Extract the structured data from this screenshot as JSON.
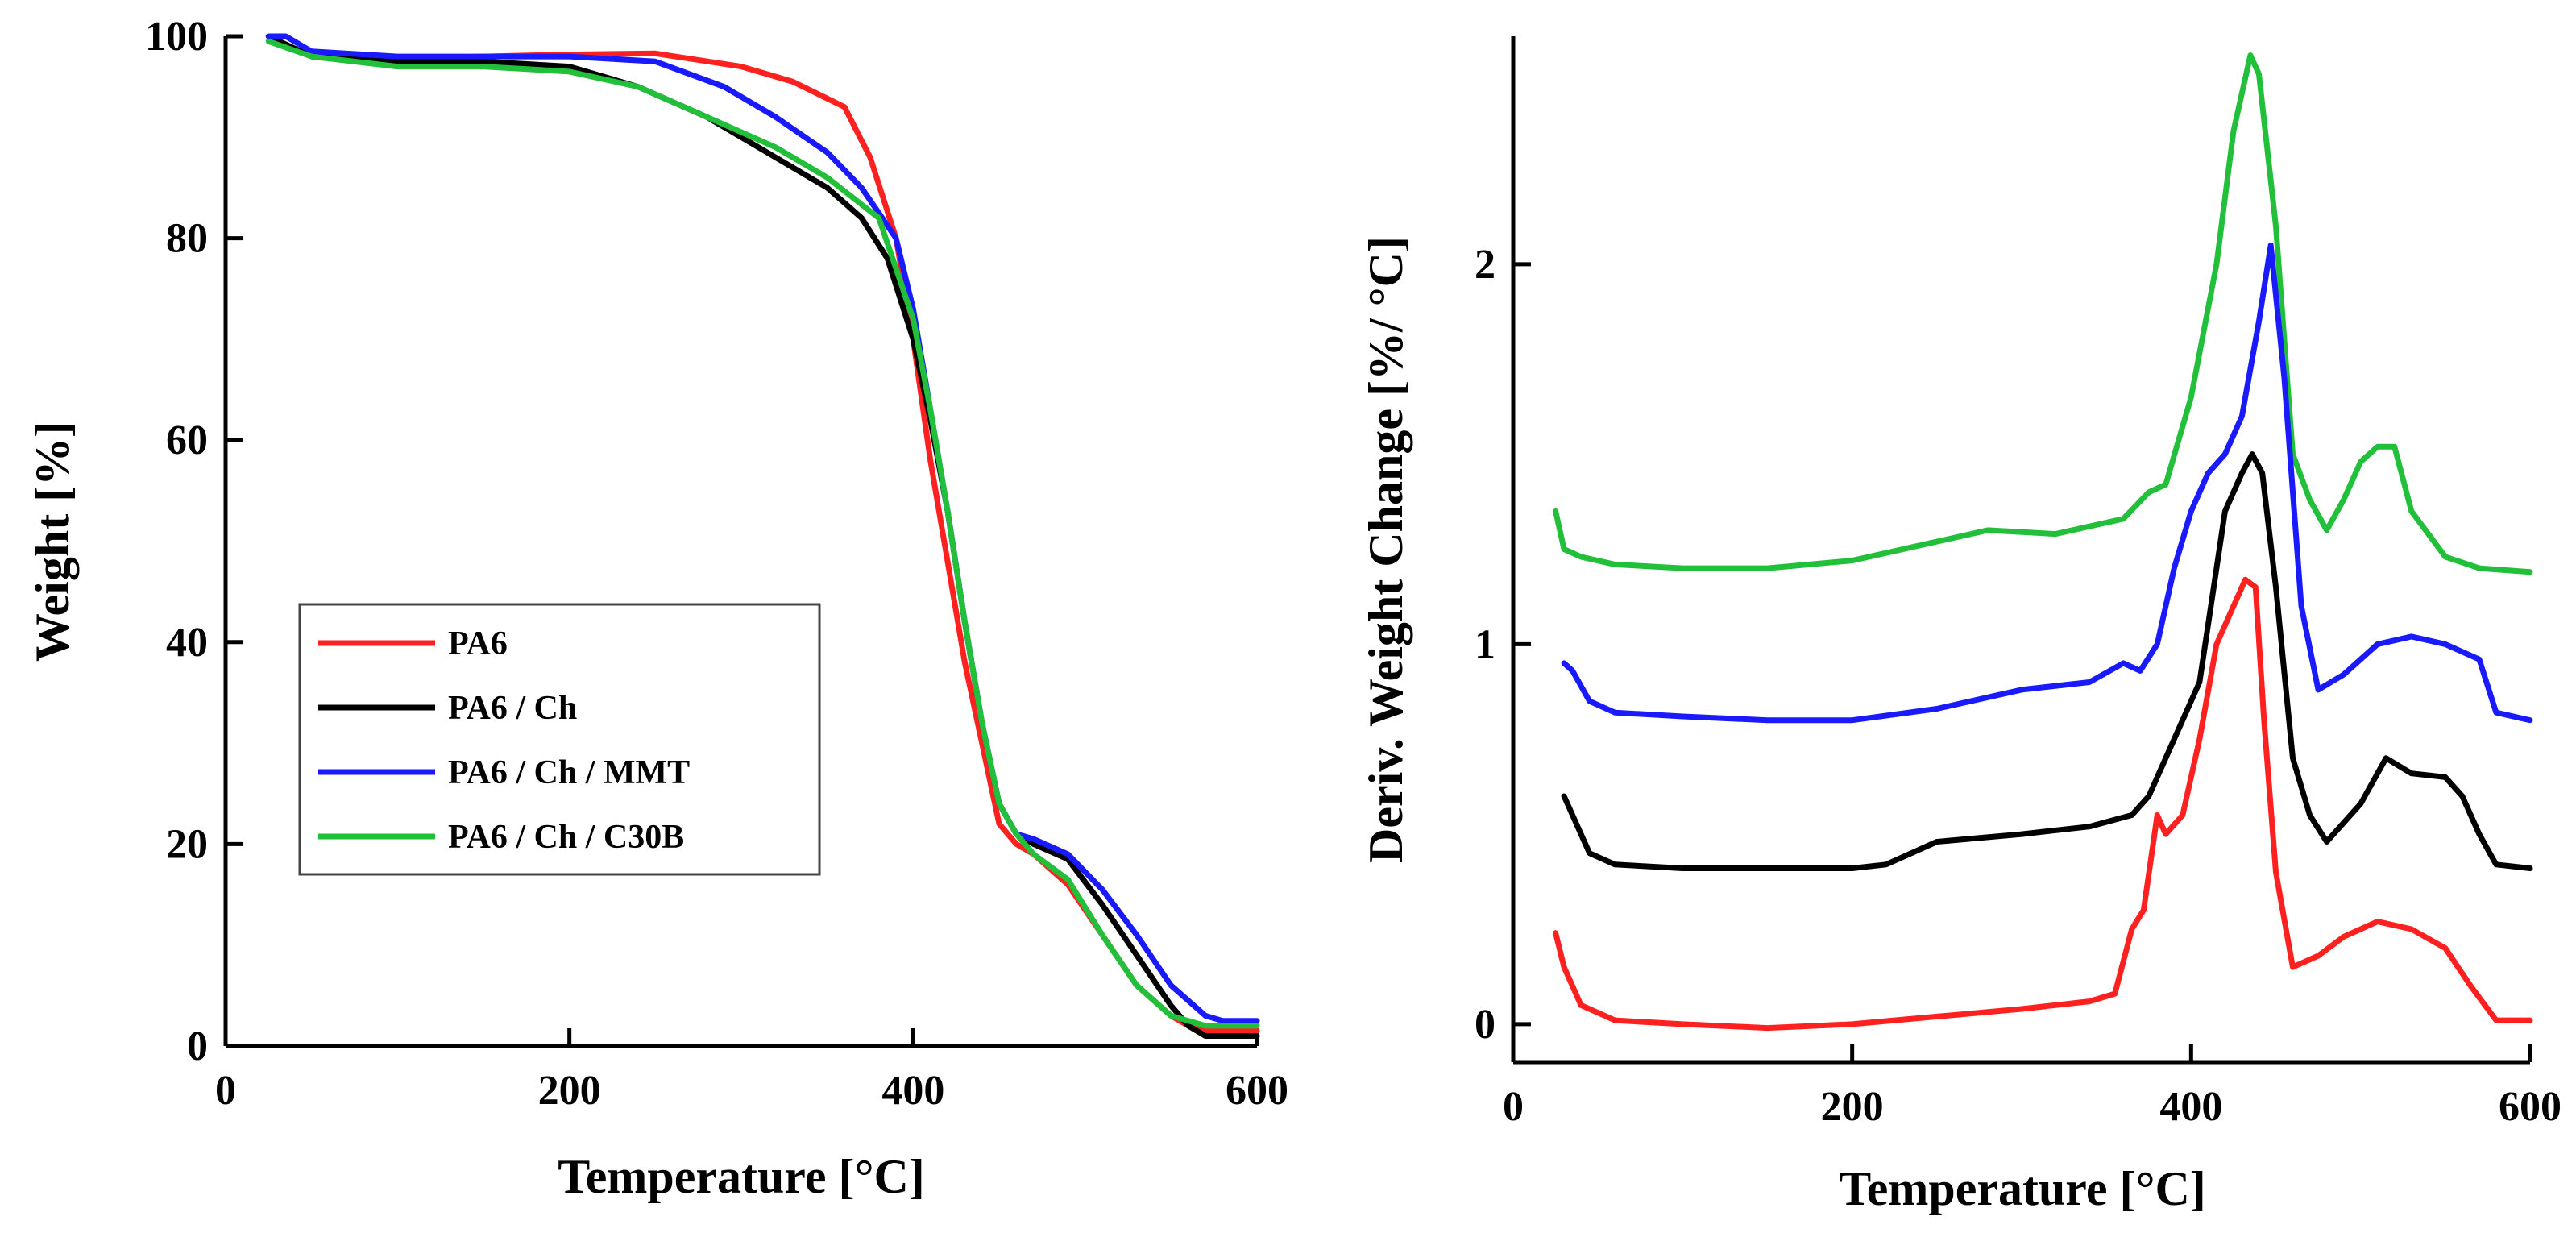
{
  "chart_data": [
    {
      "type": "line",
      "title": "",
      "xlabel": "Temperature [°C]",
      "ylabel": "Weight [%]",
      "xlim": [
        0,
        600
      ],
      "ylim": [
        0,
        100
      ],
      "xticks": [
        0,
        200,
        400,
        600
      ],
      "yticks": [
        0,
        20,
        40,
        60,
        80,
        100
      ],
      "legend_position": "middle-left",
      "series": [
        {
          "name": "PA6",
          "color": "#ff2020",
          "x": [
            25,
            50,
            100,
            150,
            200,
            250,
            300,
            330,
            360,
            375,
            390,
            400,
            410,
            420,
            430,
            440,
            450,
            460,
            470,
            490,
            510,
            530,
            550,
            560,
            570,
            580,
            600
          ],
          "y": [
            100,
            98,
            97.8,
            98,
            98.2,
            98.3,
            97,
            95.5,
            93,
            88,
            80,
            70,
            58,
            48,
            38,
            30,
            22,
            20,
            19,
            16,
            11,
            6,
            3,
            2,
            1.5,
            1.5,
            1.5
          ]
        },
        {
          "name": "PA6 / Ch",
          "color": "#000000",
          "x": [
            25,
            50,
            100,
            150,
            200,
            240,
            280,
            320,
            350,
            370,
            385,
            400,
            410,
            420,
            430,
            440,
            450,
            460,
            470,
            490,
            510,
            530,
            550,
            560,
            570,
            580,
            600
          ],
          "y": [
            100,
            98,
            97.5,
            97.5,
            97,
            95,
            92,
            88,
            85,
            82,
            78,
            70,
            62,
            53,
            42,
            32,
            24,
            21,
            20,
            18.5,
            14,
            9,
            4,
            2,
            1,
            1,
            1
          ]
        },
        {
          "name": "PA6 / Ch / MMT",
          "color": "#1a1aff",
          "x": [
            25,
            35,
            50,
            100,
            150,
            200,
            250,
            290,
            320,
            350,
            370,
            390,
            400,
            410,
            420,
            430,
            440,
            450,
            460,
            470,
            490,
            510,
            530,
            550,
            570,
            580,
            600
          ],
          "y": [
            100,
            100,
            98.5,
            98,
            98,
            98,
            97.5,
            95,
            92,
            88.5,
            85,
            80,
            73,
            63,
            53,
            42,
            32,
            24,
            21,
            20.5,
            19,
            15.5,
            11,
            6,
            3,
            2.5,
            2.5
          ]
        },
        {
          "name": "PA6 / Ch / C30B",
          "color": "#22c03a",
          "x": [
            25,
            50,
            100,
            150,
            200,
            240,
            280,
            320,
            350,
            380,
            400,
            410,
            420,
            430,
            440,
            450,
            460,
            470,
            490,
            510,
            530,
            550,
            560,
            570,
            580,
            600
          ],
          "y": [
            99.5,
            98,
            97,
            97,
            96.5,
            95,
            92,
            89,
            86,
            82,
            72,
            63,
            53,
            42,
            32,
            24,
            21,
            19,
            16.5,
            11,
            6,
            3,
            2.5,
            2,
            2,
            2
          ]
        }
      ]
    },
    {
      "type": "line",
      "title": "",
      "xlabel": "Temperature [°C]",
      "ylabel": "Deriv. Weight Change [%/ °C]",
      "xlim": [
        0,
        600
      ],
      "ylim": [
        -0.1,
        2.6
      ],
      "xticks": [
        0,
        200,
        400,
        600
      ],
      "yticks": [
        0,
        1,
        2
      ],
      "series": [
        {
          "name": "PA6 / Ch / C30B",
          "color": "#22c03a",
          "x": [
            25,
            30,
            40,
            60,
            100,
            150,
            200,
            250,
            280,
            320,
            360,
            375,
            385,
            400,
            415,
            425,
            435,
            440,
            450,
            460,
            470,
            480,
            490,
            500,
            510,
            520,
            530,
            550,
            570,
            600
          ],
          "y": [
            1.35,
            1.25,
            1.23,
            1.21,
            1.2,
            1.2,
            1.22,
            1.27,
            1.3,
            1.29,
            1.33,
            1.4,
            1.42,
            1.65,
            2.0,
            2.35,
            2.55,
            2.5,
            2.1,
            1.5,
            1.38,
            1.3,
            1.38,
            1.48,
            1.52,
            1.52,
            1.35,
            1.23,
            1.2,
            1.19
          ]
        },
        {
          "name": "PA6 / Ch / MMT",
          "color": "#1a1aff",
          "x": [
            30,
            35,
            45,
            60,
            100,
            150,
            200,
            250,
            300,
            340,
            360,
            370,
            380,
            390,
            400,
            410,
            420,
            430,
            440,
            447,
            455,
            465,
            475,
            490,
            510,
            530,
            550,
            570,
            580,
            600
          ],
          "y": [
            0.95,
            0.93,
            0.85,
            0.82,
            0.81,
            0.8,
            0.8,
            0.83,
            0.88,
            0.9,
            0.95,
            0.93,
            1.0,
            1.2,
            1.35,
            1.45,
            1.5,
            1.6,
            1.85,
            2.05,
            1.7,
            1.1,
            0.88,
            0.92,
            1.0,
            1.02,
            1.0,
            0.96,
            0.82,
            0.8
          ]
        },
        {
          "name": "PA6 / Ch",
          "color": "#000000",
          "x": [
            30,
            35,
            45,
            60,
            100,
            150,
            200,
            220,
            250,
            300,
            340,
            365,
            375,
            390,
            405,
            415,
            420,
            430,
            436,
            442,
            450,
            460,
            470,
            480,
            500,
            515,
            530,
            550,
            560,
            570,
            580,
            600
          ],
          "y": [
            0.6,
            0.55,
            0.45,
            0.42,
            0.41,
            0.41,
            0.41,
            0.42,
            0.48,
            0.5,
            0.52,
            0.55,
            0.6,
            0.75,
            0.9,
            1.2,
            1.35,
            1.45,
            1.5,
            1.45,
            1.15,
            0.7,
            0.55,
            0.48,
            0.58,
            0.7,
            0.66,
            0.65,
            0.6,
            0.5,
            0.42,
            0.41
          ]
        },
        {
          "name": "PA6",
          "color": "#ff2020",
          "x": [
            25,
            30,
            40,
            60,
            100,
            150,
            200,
            250,
            300,
            340,
            355,
            365,
            372,
            380,
            385,
            395,
            405,
            415,
            420,
            425,
            432,
            438,
            443,
            450,
            460,
            475,
            490,
            510,
            530,
            550,
            565,
            580,
            600
          ],
          "y": [
            0.24,
            0.15,
            0.05,
            0.01,
            0.0,
            -0.01,
            0.0,
            0.02,
            0.04,
            0.06,
            0.08,
            0.25,
            0.3,
            0.55,
            0.5,
            0.55,
            0.75,
            1.0,
            1.05,
            1.1,
            1.17,
            1.15,
            0.8,
            0.4,
            0.15,
            0.18,
            0.23,
            0.27,
            0.25,
            0.2,
            0.1,
            0.01,
            0.01
          ]
        }
      ]
    }
  ]
}
